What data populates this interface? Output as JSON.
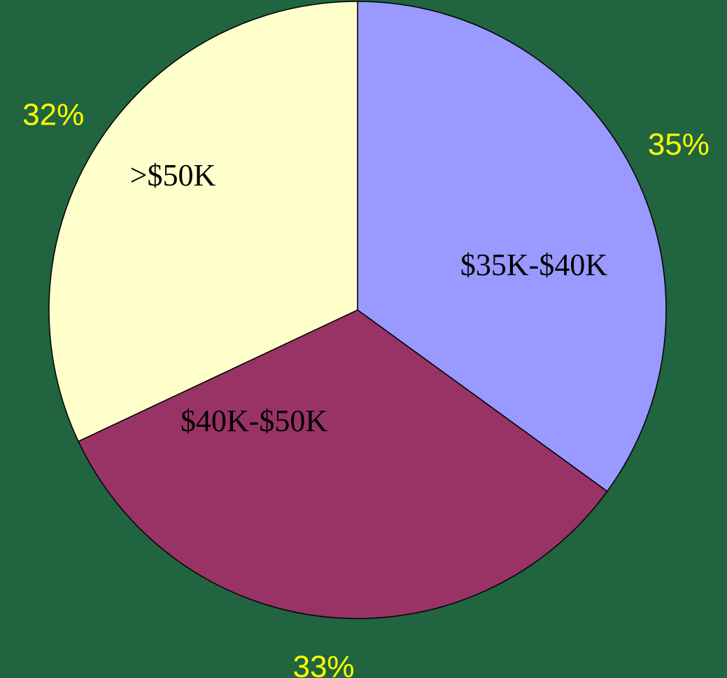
{
  "chart_data": {
    "type": "pie",
    "categories": [
      "$35K-$40K",
      "$40K-$50K",
      ">$50K"
    ],
    "values": [
      35,
      33,
      32
    ],
    "value_labels": [
      "35%",
      "33%",
      "32%"
    ],
    "colors": [
      "#9999ff",
      "#993366",
      "#ffffcc"
    ]
  }
}
